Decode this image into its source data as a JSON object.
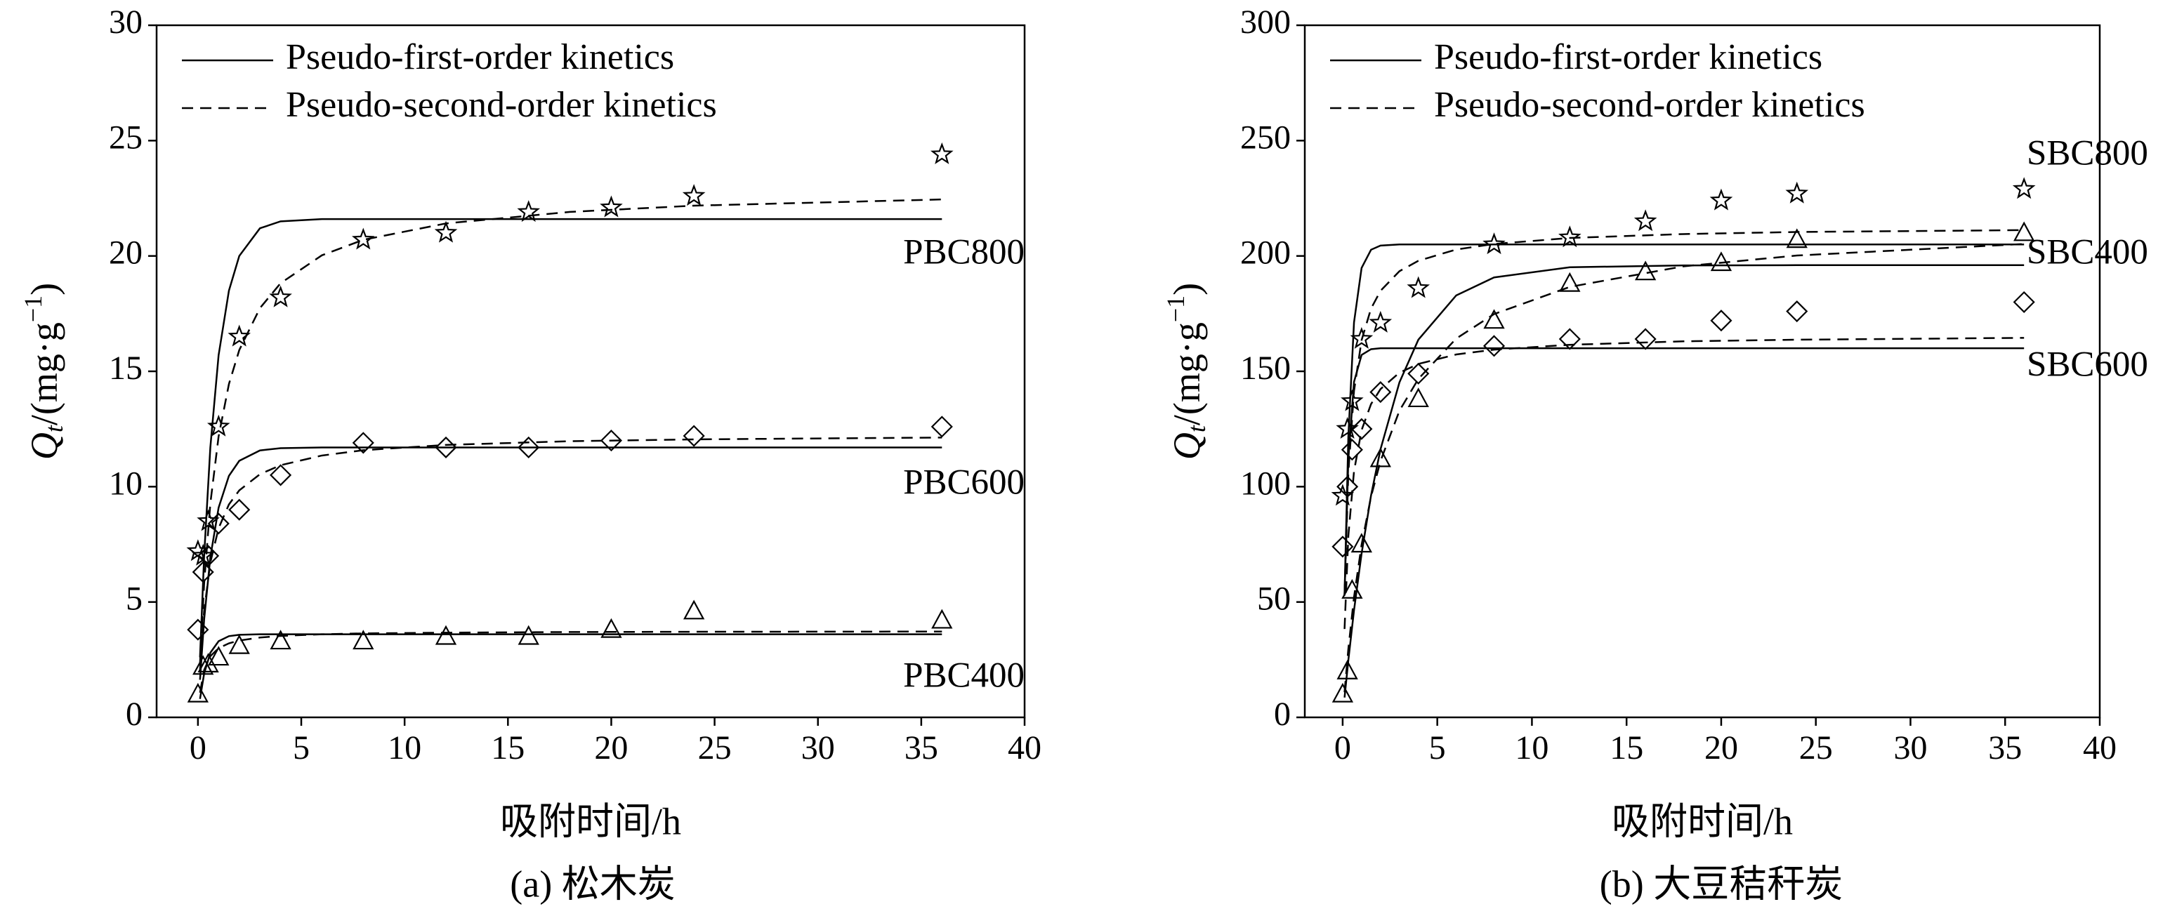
{
  "chart_data": [
    {
      "type": "scatter",
      "title": "(a) 松木炭",
      "xlabel": "吸附时间/h",
      "ylabel": {
        "symbol": "Q",
        "subscript": "t",
        "text": "/(mg·g",
        "superscript": "−1",
        "end": ")"
      },
      "xlim": [
        -2,
        40
      ],
      "ylim": [
        0,
        30
      ],
      "xticks": [
        0,
        5,
        10,
        15,
        20,
        25,
        30,
        35,
        40
      ],
      "yticks": [
        0,
        5,
        10,
        15,
        20,
        25,
        30
      ],
      "color": "#000000",
      "legend_position": "upper left",
      "legend": [
        {
          "name": "Pseudo-first-order kinetics",
          "key": "pfo",
          "dash": "solid"
        },
        {
          "name": "Pseudo-second-order kinetics",
          "key": "pso",
          "dash": "dashed"
        }
      ],
      "series": [
        {
          "name": "PBC800",
          "marker": "star",
          "x": [
            0,
            0.25,
            0.5,
            1,
            2,
            4,
            8,
            12,
            16,
            20,
            24,
            36
          ],
          "values": [
            7.2,
            7.0,
            8.5,
            12.6,
            16.5,
            18.2,
            20.7,
            21.0,
            21.9,
            22.1,
            22.6,
            24.4
          ],
          "pfo": {
            "x": [
              0.1,
              0.3,
              0.6,
              1,
              1.5,
              2,
              3,
              4,
              6,
              8,
              12,
              18,
              24,
              36
            ],
            "values": [
              2.6,
              7.0,
              11.7,
              15.7,
              18.5,
              20.0,
              21.2,
              21.5,
              21.6,
              21.6,
              21.6,
              21.6,
              21.6,
              21.6
            ]
          },
          "pso": {
            "x": [
              0.1,
              0.3,
              0.6,
              1,
              1.5,
              2,
              3,
              4,
              6,
              8,
              12,
              18,
              24,
              36
            ],
            "values": [
              2.33,
              5.8,
              9.27,
              12.18,
              14.45,
              15.92,
              17.74,
              18.82,
              20.03,
              20.7,
              21.41,
              21.91,
              22.18,
              22.45
            ]
          }
        },
        {
          "name": "PBC600",
          "marker": "diamond",
          "x": [
            0,
            0.25,
            0.5,
            1,
            2,
            4,
            8,
            12,
            16,
            20,
            24,
            36
          ],
          "values": [
            3.8,
            6.3,
            7.0,
            8.4,
            9.0,
            10.5,
            11.9,
            11.7,
            11.7,
            12.0,
            12.2,
            12.6
          ],
          "pfo": {
            "x": [
              0.1,
              0.3,
              0.6,
              1,
              1.5,
              2,
              3,
              4,
              6,
              8,
              12,
              18,
              24,
              36
            ],
            "values": [
              1.63,
              4.24,
              6.94,
              9.09,
              10.47,
              11.12,
              11.57,
              11.67,
              11.7,
              11.7,
              11.7,
              11.7,
              11.7,
              11.7
            ]
          },
          "pso": {
            "x": [
              0.1,
              0.3,
              0.6,
              1,
              1.5,
              2,
              3,
              4,
              6,
              8,
              12,
              18,
              24,
              36
            ],
            "values": [
              2.05,
              4.61,
              6.71,
              8.2,
              9.23,
              9.84,
              10.54,
              10.93,
              11.35,
              11.58,
              11.81,
              11.97,
              12.05,
              12.13
            ]
          }
        },
        {
          "name": "PBC400",
          "marker": "triangle",
          "x": [
            0,
            0.25,
            0.5,
            1,
            2,
            4,
            8,
            12,
            16,
            20,
            24,
            36
          ],
          "values": [
            1.0,
            2.2,
            2.3,
            2.6,
            3.1,
            3.3,
            3.3,
            3.5,
            3.5,
            3.8,
            4.6,
            4.2
          ],
          "pfo": {
            "x": [
              0.1,
              0.3,
              0.6,
              1,
              1.5,
              2,
              3,
              4,
              6,
              8,
              12,
              18,
              24,
              36
            ],
            "values": [
              0.8,
              1.9,
              2.8,
              3.3,
              3.52,
              3.58,
              3.6,
              3.6,
              3.6,
              3.6,
              3.6,
              3.6,
              3.6,
              3.6
            ]
          },
          "pso": {
            "x": [
              0.1,
              0.3,
              0.6,
              1,
              1.5,
              2,
              3,
              4,
              6,
              8,
              12,
              18,
              24,
              36
            ],
            "values": [
              1.07,
              2.05,
              2.65,
              3.0,
              3.21,
              3.33,
              3.46,
              3.53,
              3.6,
              3.64,
              3.67,
              3.7,
              3.71,
              3.72
            ]
          }
        }
      ]
    },
    {
      "type": "scatter",
      "title": "(b) 大豆秸秆炭",
      "xlabel": "吸附时间/h",
      "ylabel": {
        "symbol": "Q",
        "subscript": "t",
        "text": "/(mg·g",
        "superscript": "−1",
        "end": ")"
      },
      "xlim": [
        -2,
        40
      ],
      "ylim": [
        0,
        300
      ],
      "xticks": [
        0,
        5,
        10,
        15,
        20,
        25,
        30,
        35,
        40
      ],
      "yticks": [
        0,
        50,
        100,
        150,
        200,
        250,
        300
      ],
      "color": "#000000",
      "legend_position": "upper left",
      "legend": [
        {
          "name": "Pseudo-first-order kinetics",
          "key": "pfo",
          "dash": "solid"
        },
        {
          "name": "Pseudo-second-order kinetics",
          "key": "pso",
          "dash": "dashed"
        }
      ],
      "series": [
        {
          "name": "SBC800",
          "marker": "star",
          "x": [
            0,
            0.25,
            0.5,
            1,
            2,
            4,
            8,
            12,
            16,
            20,
            24,
            36
          ],
          "values": [
            96,
            125,
            137,
            164,
            171,
            186,
            205,
            208,
            215,
            224,
            227,
            229
          ],
          "pfo": {
            "x": [
              0.1,
              0.3,
              0.6,
              1,
              1.5,
              2,
              3,
              4,
              6,
              8,
              12,
              18,
              24,
              36
            ],
            "values": [
              53.1,
              121.6,
              171.2,
              194.8,
              202.7,
              204.5,
              205,
              205,
              205,
              205,
              205,
              205,
              205,
              205
            ]
          },
          "pso": {
            "x": [
              0.1,
              0.3,
              0.6,
              1,
              1.5,
              2,
              3,
              4,
              6,
              8,
              12,
              18,
              24,
              36
            ],
            "values": [
              52.9,
              106.0,
              141.5,
              163.5,
              177.2,
              184.9,
              193.4,
              197.9,
              202.8,
              205.2,
              207.8,
              209.5,
              210.4,
              211.2
            ]
          }
        },
        {
          "name": "SBC400",
          "marker": "triangle",
          "x": [
            0,
            0.25,
            0.5,
            1,
            2,
            4,
            8,
            12,
            16,
            20,
            24,
            36
          ],
          "values": [
            10,
            20,
            55,
            75,
            112,
            138,
            172,
            188,
            193,
            197,
            207,
            210
          ],
          "pfo": {
            "x": [
              0.1,
              0.3,
              0.6,
              1,
              1.5,
              2,
              3,
              4,
              6,
              8,
              12,
              18,
              24,
              36
            ],
            "values": [
              8.6,
              24.7,
              46.4,
              71.0,
              96.2,
              116.2,
              145.2,
              163.7,
              182.9,
              190.7,
              195.1,
              195.9,
              196,
              196
            ]
          },
          "pso": {
            "x": [
              0.1,
              0.3,
              0.6,
              1,
              1.5,
              2,
              3,
              4,
              6,
              8,
              12,
              18,
              24,
              36
            ],
            "values": [
              10.9,
              29.6,
              52.1,
              74.8,
              95.7,
              111.1,
              132.9,
              146.7,
              164.2,
              174.8,
              186.6,
              195.5,
              200.2,
              205.2
            ]
          }
        },
        {
          "name": "SBC600",
          "marker": "diamond",
          "x": [
            0,
            0.25,
            0.5,
            1,
            2,
            4,
            8,
            12,
            16,
            20,
            24,
            36
          ],
          "values": [
            74,
            100,
            116,
            125,
            141,
            149,
            161,
            164,
            164,
            172,
            176,
            180
          ],
          "pfo": {
            "x": [
              0.1,
              0.3,
              0.6,
              1,
              1.5,
              2,
              3,
              4,
              6,
              8,
              12,
              18,
              24,
              36
            ],
            "values": [
              52.8,
              111.8,
              145.4,
              157.1,
              159.6,
              160,
              160,
              160,
              160,
              160,
              160,
              160,
              160,
              160
            ]
          },
          "pso": {
            "x": [
              0.1,
              0.3,
              0.6,
              1,
              1.5,
              2,
              3,
              4,
              6,
              8,
              12,
              18,
              24,
              36
            ],
            "values": [
              38.3,
              78.6,
              106.7,
              124.5,
              135.8,
              142.3,
              149.4,
              153.2,
              157.3,
              159.4,
              161.5,
              163.0,
              163.7,
              164.5
            ]
          }
        }
      ]
    }
  ]
}
